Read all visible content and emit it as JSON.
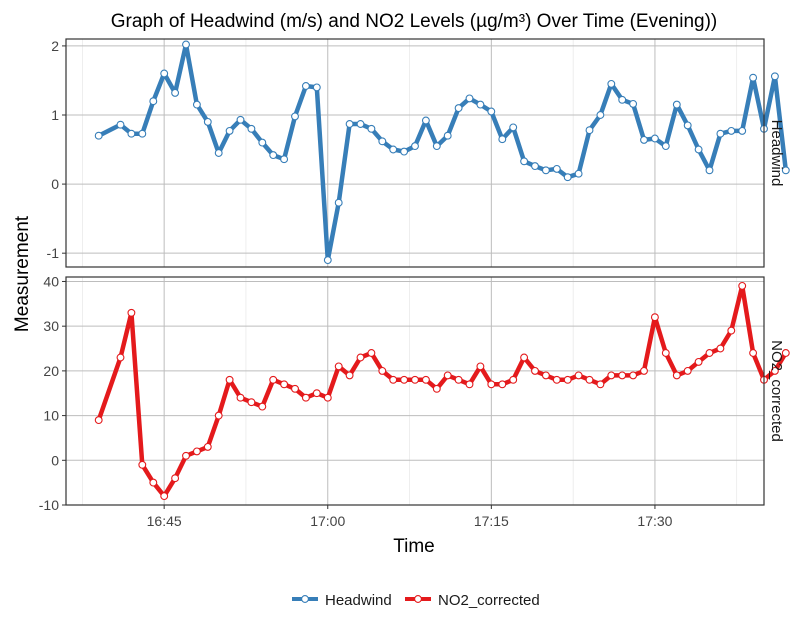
{
  "chart_data": {
    "type": "line",
    "title": "Graph of Headwind (m/s) and NO2 Levels (µg/m³) Over Time (Evening))",
    "xlabel": "Time",
    "ylabel": "Measurement",
    "x_range": [
      "16:36",
      "17:40"
    ],
    "x_ticks": [
      "16:45",
      "17:00",
      "17:15",
      "17:30"
    ],
    "grid": true,
    "legend_position": "bottom",
    "x": [
      "16:39",
      "16:41",
      "16:42",
      "16:43",
      "16:44",
      "16:45",
      "16:46",
      "16:47",
      "16:48",
      "16:49",
      "16:50",
      "16:51",
      "16:52",
      "16:53",
      "16:54",
      "16:55",
      "16:56",
      "16:57",
      "16:58",
      "16:59",
      "17:00",
      "17:01",
      "17:02",
      "17:03",
      "17:04",
      "17:05",
      "17:06",
      "17:07",
      "17:08",
      "17:09",
      "17:10",
      "17:11",
      "17:12",
      "17:13",
      "17:14",
      "17:15",
      "17:16",
      "17:17",
      "17:18",
      "17:19",
      "17:20",
      "17:21",
      "17:22",
      "17:23",
      "17:24",
      "17:25",
      "17:26",
      "17:27",
      "17:28",
      "17:29",
      "17:30",
      "17:31",
      "17:32",
      "17:33",
      "17:34",
      "17:35",
      "17:36",
      "17:37",
      "17:38",
      "17:39",
      "17:40",
      "17:41",
      "17:42",
      "17:43"
    ],
    "panels": [
      {
        "name": "Headwind",
        "strip_label": "Headwind",
        "ylim": [
          -1.2,
          2.1
        ],
        "y_ticks": [
          -1,
          0,
          1,
          2
        ],
        "color": "#377EB8",
        "values": [
          0.7,
          0.86,
          0.73,
          0.73,
          1.2,
          1.6,
          1.32,
          2.02,
          1.15,
          0.9,
          0.45,
          0.77,
          0.93,
          0.8,
          0.6,
          0.42,
          0.36,
          0.98,
          1.42,
          1.4,
          -1.1,
          -0.27,
          0.87,
          0.87,
          0.8,
          0.62,
          0.5,
          0.47,
          0.55,
          0.92,
          0.55,
          0.7,
          1.1,
          1.24,
          1.15,
          1.05,
          0.65,
          0.82,
          0.33,
          0.26,
          0.2,
          0.22,
          0.1,
          0.15,
          0.78,
          1.0,
          1.45,
          1.22,
          1.16,
          0.64,
          0.66,
          0.55,
          1.15,
          0.85,
          0.5,
          0.2,
          0.73,
          0.77,
          0.77,
          1.54,
          0.8,
          1.56,
          0.2,
          null
        ]
      },
      {
        "name": "NO2_corrected",
        "strip_label": "NO2_corrected",
        "ylim": [
          -10,
          41
        ],
        "y_ticks": [
          -10,
          0,
          10,
          20,
          30,
          40
        ],
        "color": "#E41A1C",
        "values": [
          9,
          23,
          33,
          -1,
          -5,
          -8,
          -4,
          1,
          2,
          3,
          10,
          18,
          14,
          13,
          12,
          18,
          17,
          16,
          14,
          15,
          14,
          21,
          19,
          23,
          24,
          20,
          18,
          18,
          18,
          18,
          16,
          19,
          18,
          17,
          21,
          17,
          17,
          18,
          23,
          20,
          19,
          18,
          18,
          19,
          18,
          17,
          19,
          19,
          19,
          20,
          32,
          24,
          19,
          20,
          22,
          24,
          25,
          29,
          39,
          24,
          18,
          20,
          24,
          null
        ]
      }
    ],
    "series": [
      {
        "name": "Headwind",
        "color": "#377EB8"
      },
      {
        "name": "NO2_corrected",
        "color": "#E41A1C"
      }
    ]
  }
}
